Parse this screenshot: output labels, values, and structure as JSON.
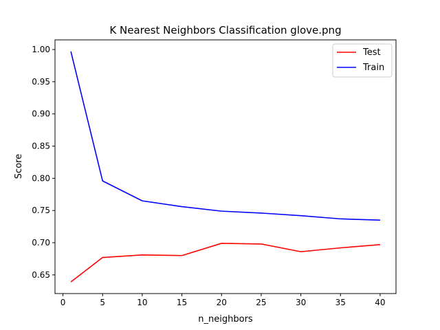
{
  "chart_data": {
    "type": "line",
    "title": "K Nearest Neighbors Classification glove.png",
    "xlabel": "n_neighbors",
    "ylabel": "Score",
    "x": [
      1,
      5,
      10,
      15,
      20,
      25,
      30,
      35,
      40
    ],
    "xlim": [
      -1,
      42
    ],
    "ylim": [
      0.621,
      1.015
    ],
    "xticks": [
      0,
      5,
      10,
      15,
      20,
      25,
      30,
      35,
      40
    ],
    "yticks": [
      0.65,
      0.7,
      0.75,
      0.8,
      0.85,
      0.9,
      0.95,
      1.0
    ],
    "ytick_labels": [
      "0.65",
      "0.70",
      "0.75",
      "0.80",
      "0.85",
      "0.90",
      "0.95",
      "1.00"
    ],
    "grid": false,
    "legend_position": "top-right",
    "series": [
      {
        "name": "Test",
        "color": "#ff0000",
        "values": [
          0.639,
          0.677,
          0.681,
          0.68,
          0.699,
          0.698,
          0.686,
          0.692,
          0.697
        ]
      },
      {
        "name": "Train",
        "color": "#0000ff",
        "values": [
          0.997,
          0.796,
          0.765,
          0.756,
          0.749,
          0.746,
          0.742,
          0.737,
          0.735
        ]
      }
    ]
  }
}
